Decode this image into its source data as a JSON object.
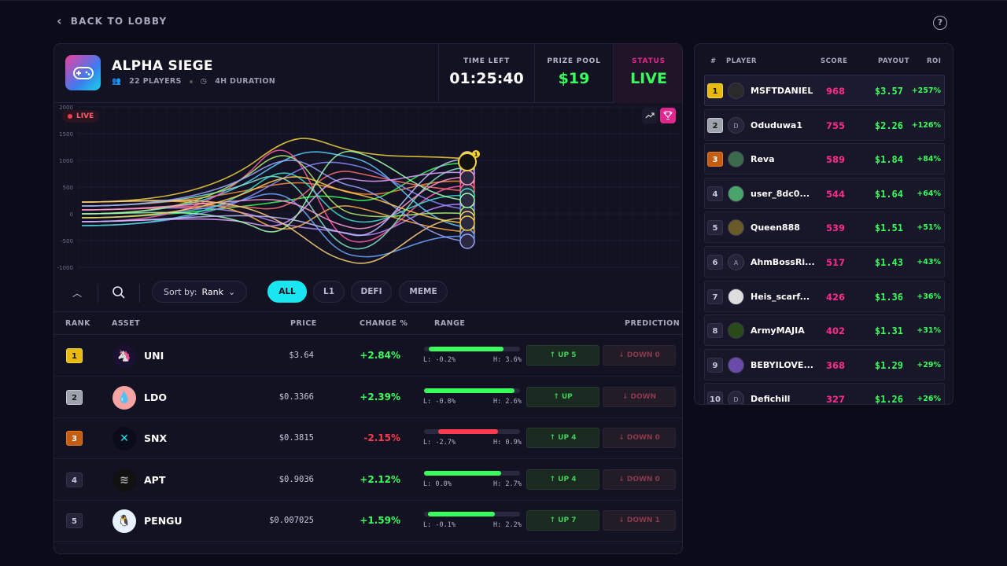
{
  "nav": {
    "back_label": "BACK TO LOBBY",
    "help_label": "?"
  },
  "game": {
    "title": "ALPHA SIEGE",
    "players": "22 PLAYERS",
    "duration": "4H DURATION",
    "time_left_label": "TIME LEFT",
    "time_left": "01:25:40",
    "prize_label": "PRIZE POOL",
    "prize": "$19",
    "status_label": "STATUS",
    "status": "LIVE"
  },
  "chart": {
    "live_badge": "LIVE",
    "y_ticks": [
      "2000",
      "1500",
      "1000",
      "500",
      "0",
      "-500",
      "-1000"
    ],
    "leader_badge": "1"
  },
  "toolbar": {
    "sort_label": "Sort by:",
    "sort_value": "Rank",
    "filters": [
      "ALL",
      "L1",
      "DEFI",
      "MEME"
    ],
    "active_filter": "ALL"
  },
  "table": {
    "headers": {
      "rank": "RANK",
      "asset": "ASSET",
      "price": "PRICE",
      "change": "CHANGE %",
      "range": "RANGE",
      "prediction": "PREDICTION"
    },
    "rows": [
      {
        "rank": "1",
        "asset": "UNI",
        "price": "$3.64",
        "change": "+2.84%",
        "low": "L: -0.2%",
        "high": "H: 3.6%",
        "up_label": "↑ UP 5",
        "down_label": "↓ DOWN 0",
        "range_fill": 0.78,
        "range_start": 0.05,
        "direction": "up"
      },
      {
        "rank": "2",
        "asset": "LDO",
        "price": "$0.3366",
        "change": "+2.39%",
        "low": "L: -0.0%",
        "high": "H: 2.6%",
        "up_label": "↑ UP",
        "down_label": "↓ DOWN",
        "range_fill": 0.94,
        "range_start": 0.0,
        "direction": "up"
      },
      {
        "rank": "3",
        "asset": "SNX",
        "price": "$0.3815",
        "change": "-2.15%",
        "low": "L: -2.7%",
        "high": "H: 0.9%",
        "up_label": "↑ UP 4",
        "down_label": "↓ DOWN 0",
        "range_fill": 0.62,
        "range_start": 0.15,
        "direction": "down"
      },
      {
        "rank": "4",
        "asset": "APT",
        "price": "$0.9036",
        "change": "+2.12%",
        "low": "L: 0.0%",
        "high": "H: 2.7%",
        "up_label": "↑ UP 4",
        "down_label": "↓ DOWN 0",
        "range_fill": 0.8,
        "range_start": 0.0,
        "direction": "up"
      },
      {
        "rank": "5",
        "asset": "PENGU",
        "price": "$0.007025",
        "change": "+1.59%",
        "low": "L: -0.1%",
        "high": "H: 2.2%",
        "up_label": "↑ UP 7",
        "down_label": "↓ DOWN 1",
        "range_fill": 0.7,
        "range_start": 0.04,
        "direction": "up"
      }
    ]
  },
  "leaderboard": {
    "headers": {
      "rank": "#",
      "player": "PLAYER",
      "score": "SCORE",
      "payout": "PAYOUT",
      "roi": "ROI"
    },
    "rows": [
      {
        "rank": "1",
        "name": "MSFTDANIEL",
        "score": "968",
        "payout": "$3.57",
        "roi": "+257%",
        "initial": ""
      },
      {
        "rank": "2",
        "name": "Oduduwa1",
        "score": "755",
        "payout": "$2.26",
        "roi": "+126%",
        "initial": "D"
      },
      {
        "rank": "3",
        "name": "Reva",
        "score": "589",
        "payout": "$1.84",
        "roi": "+84%",
        "initial": ""
      },
      {
        "rank": "4",
        "name": "user_8dc0...",
        "score": "544",
        "payout": "$1.64",
        "roi": "+64%",
        "initial": ""
      },
      {
        "rank": "5",
        "name": "Queen888",
        "score": "539",
        "payout": "$1.51",
        "roi": "+51%",
        "initial": ""
      },
      {
        "rank": "6",
        "name": "AhmBossRi...",
        "score": "517",
        "payout": "$1.43",
        "roi": "+43%",
        "initial": "A"
      },
      {
        "rank": "7",
        "name": "Heis_scarf...",
        "score": "426",
        "payout": "$1.36",
        "roi": "+36%",
        "initial": ""
      },
      {
        "rank": "8",
        "name": "ArmyMAJIA",
        "score": "402",
        "payout": "$1.31",
        "roi": "+31%",
        "initial": ""
      },
      {
        "rank": "9",
        "name": "BEBYILOVE...",
        "score": "368",
        "payout": "$1.29",
        "roi": "+29%",
        "initial": ""
      },
      {
        "rank": "10",
        "name": "Defichill",
        "score": "327",
        "payout": "$1.26",
        "roi": "+26%",
        "initial": "D"
      }
    ]
  },
  "colors": {
    "accent_cyan": "#19e6f0",
    "accent_pink": "#e3268e",
    "positive": "#39ff5c",
    "negative": "#ff3b50"
  }
}
